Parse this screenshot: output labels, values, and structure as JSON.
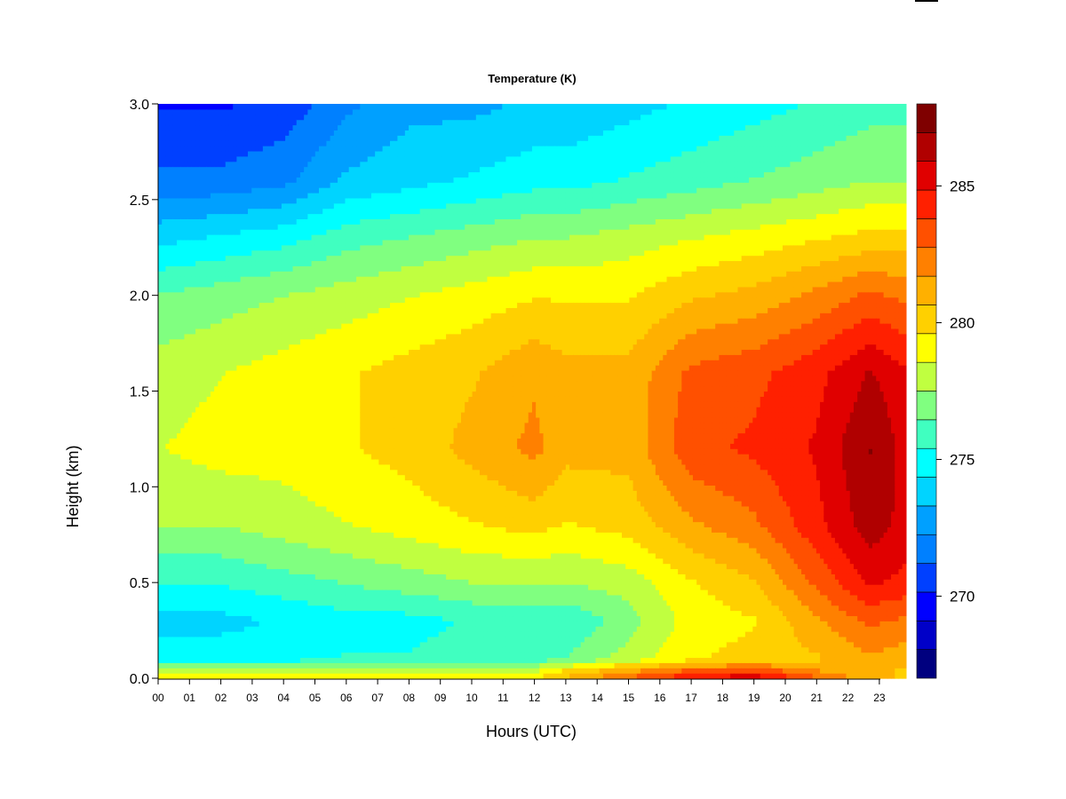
{
  "chart_data": {
    "type": "heatmap",
    "title": "Temperature (K)",
    "xlabel": "Hours (UTC)",
    "ylabel": "Height (km)",
    "x_ticks": [
      "00",
      "01",
      "02",
      "03",
      "04",
      "05",
      "06",
      "07",
      "08",
      "09",
      "10",
      "11",
      "12",
      "13",
      "14",
      "15",
      "16",
      "17",
      "18",
      "19",
      "20",
      "21",
      "22",
      "23"
    ],
    "xlim": [
      0,
      23.85
    ],
    "y_ticks": [
      "0.0",
      "0.5",
      "1.0",
      "1.5",
      "2.0",
      "2.5",
      "3.0"
    ],
    "ylim": [
      0,
      3.0
    ],
    "colorbar": {
      "range": [
        267,
        288
      ],
      "tick_labels": [
        "270",
        "275",
        "280",
        "285"
      ],
      "tick_values": [
        270,
        275,
        280,
        285
      ],
      "levels": 21,
      "colormap": [
        "#00007f",
        "#0000c8",
        "#0000ff",
        "#0040ff",
        "#0080ff",
        "#00a0ff",
        "#00d4ff",
        "#00ffff",
        "#40ffc0",
        "#80ff80",
        "#c0ff40",
        "#ffff00",
        "#ffd000",
        "#ffb000",
        "#ff8000",
        "#ff5000",
        "#ff2000",
        "#e00000",
        "#b00000",
        "#7f0000"
      ]
    },
    "grid": false,
    "hours": [
      0,
      2,
      4,
      6,
      8,
      10,
      12,
      13,
      15,
      17,
      19,
      21,
      22.7,
      23.85
    ],
    "profiles": [
      {
        "hour": 0,
        "heights": [
          0,
          0.05,
          0.1,
          0.3,
          0.5,
          0.8,
          1.2,
          1.6,
          2.0,
          2.3,
          2.6,
          3.0
        ],
        "values": [
          279,
          278,
          275,
          274,
          275.5,
          277.5,
          278.5,
          278,
          276.5,
          274,
          271.5,
          270
        ]
      },
      {
        "hour": 2,
        "heights": [
          0,
          0.05,
          0.1,
          0.3,
          0.5,
          0.8,
          1.2,
          1.6,
          2.0,
          2.3,
          2.6,
          3.0
        ],
        "values": [
          279,
          278,
          275,
          274,
          275.5,
          277.5,
          279,
          278.5,
          277,
          274.5,
          271.5,
          270
        ]
      },
      {
        "hour": 4,
        "heights": [
          0,
          0.05,
          0.1,
          0.3,
          0.5,
          0.8,
          1.2,
          1.6,
          2.0,
          2.3,
          2.6,
          3.0
        ],
        "values": [
          279.5,
          278,
          275,
          274.5,
          276,
          278,
          279,
          279,
          277.5,
          275,
          272,
          270.5
        ]
      },
      {
        "hour": 6,
        "heights": [
          0,
          0.05,
          0.1,
          0.3,
          0.5,
          0.8,
          1.2,
          1.6,
          2.0,
          2.3,
          2.6,
          3.0
        ],
        "values": [
          279.5,
          278,
          275.5,
          275,
          276.5,
          278.5,
          279.5,
          279.5,
          278,
          276,
          273.5,
          272
        ]
      },
      {
        "hour": 8,
        "heights": [
          0,
          0.05,
          0.1,
          0.3,
          0.5,
          0.8,
          1.2,
          1.6,
          2.0,
          2.3,
          2.6,
          3.0
        ],
        "values": [
          279.5,
          278,
          275.5,
          275,
          277,
          279,
          280,
          280,
          278.5,
          276.5,
          274,
          273
        ]
      },
      {
        "hour": 10,
        "heights": [
          0,
          0.05,
          0.1,
          0.3,
          0.5,
          0.8,
          1.2,
          1.6,
          2.0,
          2.3,
          2.6,
          3.0
        ],
        "values": [
          279.5,
          278,
          276,
          275.5,
          277.5,
          279.5,
          281,
          280.5,
          279,
          277,
          274.5,
          273
        ]
      },
      {
        "hour": 12,
        "heights": [
          0,
          0.05,
          0.1,
          0.3,
          0.5,
          0.8,
          1.2,
          1.6,
          2.0,
          2.3,
          2.6,
          3.0
        ],
        "values": [
          279.5,
          278,
          276,
          275.5,
          277.5,
          280,
          282,
          281.5,
          279.5,
          277.5,
          275,
          273.5
        ]
      },
      {
        "hour": 13,
        "heights": [
          0,
          0.05,
          0.1,
          0.3,
          0.5,
          0.8,
          1.2,
          1.6,
          2.0,
          2.3,
          2.6,
          3.0
        ],
        "values": [
          281,
          279.5,
          276.5,
          275.5,
          277.5,
          279.5,
          281,
          281,
          279.5,
          277.5,
          275,
          273.5
        ]
      },
      {
        "hour": 15,
        "heights": [
          0,
          0.05,
          0.1,
          0.3,
          0.5,
          0.8,
          1.2,
          1.6,
          2.0,
          2.3,
          2.6,
          3.0
        ],
        "values": [
          283,
          281,
          278,
          277,
          278,
          280,
          281,
          281,
          279.5,
          278,
          275.5,
          274
        ]
      },
      {
        "hour": 17,
        "heights": [
          0,
          0.05,
          0.1,
          0.3,
          0.5,
          0.8,
          1.2,
          1.6,
          2.0,
          2.3,
          2.6,
          3.0
        ],
        "values": [
          285,
          282.5,
          279.5,
          279,
          279.5,
          281.5,
          283.5,
          283,
          280.5,
          278.5,
          276,
          274.5
        ]
      },
      {
        "hour": 19,
        "heights": [
          0,
          0.05,
          0.1,
          0.3,
          0.5,
          0.8,
          1.2,
          1.6,
          2.0,
          2.3,
          2.6,
          3.0
        ],
        "values": [
          286,
          283,
          280,
          279.5,
          280.5,
          282.5,
          284,
          283.5,
          281,
          279,
          276.5,
          275
        ]
      },
      {
        "hour": 21,
        "heights": [
          0,
          0.05,
          0.1,
          0.3,
          0.5,
          0.8,
          1.2,
          1.6,
          2.0,
          2.3,
          2.6,
          3.0
        ],
        "values": [
          283,
          281.5,
          280.5,
          281.5,
          283,
          284.5,
          285,
          284.5,
          282,
          279.5,
          277,
          275.5
        ]
      },
      {
        "hour": 22.7,
        "heights": [
          0,
          0.05,
          0.1,
          0.3,
          0.5,
          0.8,
          1.2,
          1.6,
          2.0,
          2.3,
          2.6,
          3.0
        ],
        "values": [
          281,
          281,
          281.5,
          283,
          285,
          286.5,
          287,
          286,
          283,
          280,
          277.5,
          276
        ]
      },
      {
        "hour": 23.85,
        "heights": [
          0,
          0.05,
          0.1,
          0.3,
          0.5,
          0.8,
          1.2,
          1.6,
          2.0,
          2.3,
          2.6,
          3.0
        ],
        "values": [
          280.5,
          280.5,
          281,
          282.5,
          284.5,
          285.5,
          285.5,
          285,
          282.5,
          280,
          277.5,
          276
        ]
      }
    ]
  }
}
